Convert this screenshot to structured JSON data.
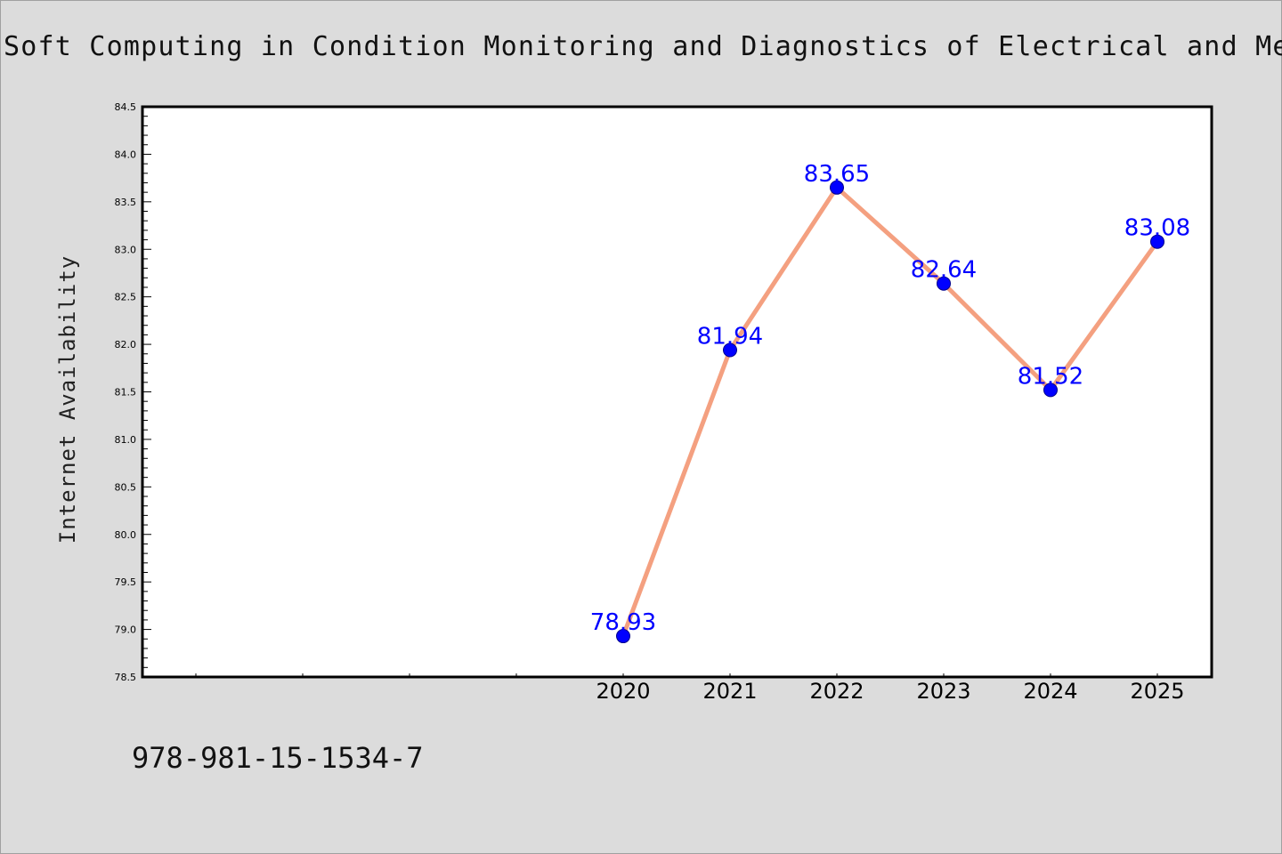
{
  "chart_data": {
    "type": "line",
    "title": "Soft Computing in Condition Monitoring and Diagnostics of Electrical and Mechanical Systems",
    "xlabel": "",
    "ylabel": "Internet Availability",
    "x": [
      "2020",
      "2021",
      "2022",
      "2023",
      "2024",
      "2025"
    ],
    "series": [
      {
        "values": [
          78.93,
          81.94,
          83.65,
          82.64,
          81.52,
          83.08
        ],
        "labels": [
          "78.93",
          "81.94",
          "83.65",
          "82.64",
          "81.52",
          "83.08"
        ]
      }
    ],
    "ylim": [
      78.5,
      84.5
    ],
    "yticks": [
      "78.5",
      "79.0",
      "79.5",
      "80.0",
      "80.5",
      "81.0",
      "81.5",
      "82.0",
      "82.5",
      "83.0",
      "83.5",
      "84.0",
      "84.5"
    ],
    "grid": false,
    "line_color": "#f4a080",
    "marker_color": "#0000ff",
    "label_color": "#0000ff"
  },
  "footer": {
    "isbn": "978-981-15-1534-7"
  }
}
